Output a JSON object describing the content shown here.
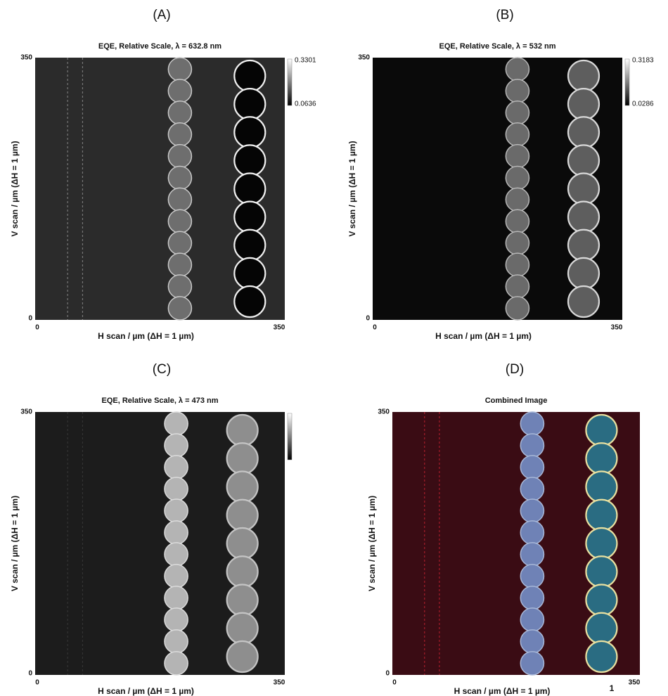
{
  "panels": [
    {
      "label": "(A)",
      "title": "EQE, Relative Scale, λ = 632.8 nm",
      "y_label": "V scan / µm (ΔH = 1 µm)",
      "x_label": "H scan / µm (ΔH = 1 µm)",
      "y_ticks": [
        350,
        0
      ],
      "x_ticks": [
        0,
        350
      ],
      "colorbar": [
        "0.3301",
        "0.0636"
      ]
    },
    {
      "label": "(B)",
      "title": "EQE, Relative Scale, λ = 532 nm",
      "y_label": "V scan / µm (ΔH = 1 µm)",
      "x_label": "H scan / µm (ΔH = 1 µm)",
      "y_ticks": [
        350,
        0
      ],
      "x_ticks": [
        0,
        350
      ],
      "colorbar": [
        "0.3183",
        "0.0286"
      ]
    },
    {
      "label": "(C)",
      "title": "EQE, Relative Scale, λ = 473 nm",
      "y_label": "V scan / µm (ΔH = 1 µm)",
      "x_label": "H scan / µm (ΔH = 1 µm)",
      "y_ticks": [
        350,
        0
      ],
      "x_ticks": [
        0,
        350
      ]
    },
    {
      "label": "(D)",
      "title": "Combined Image",
      "y_label": "V scan / µm (ΔH = 1 µm)",
      "x_label": "H scan / µm (ΔH = 1 µm)",
      "y_ticks": [
        350,
        0
      ],
      "x_ticks": [
        0,
        350
      ],
      "note": "1"
    }
  ]
}
